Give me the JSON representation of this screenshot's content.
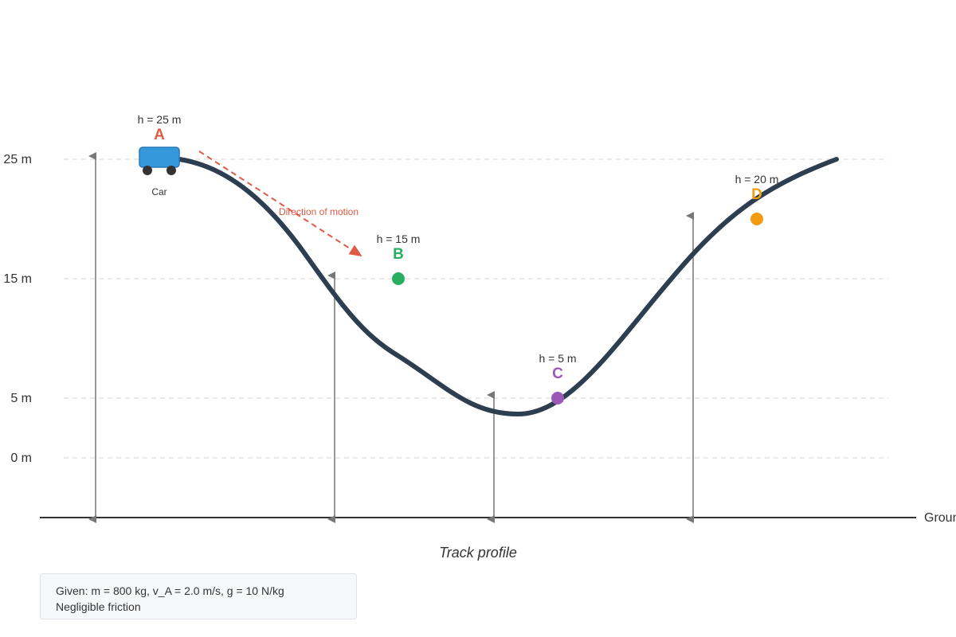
{
  "colors": {
    "track": "#2c3e50",
    "grid": "#dddddd",
    "axis": "#333333",
    "arrow": "#777777",
    "car": "#3498db",
    "car_border": "#2a7ab8",
    "wheel": "#333333",
    "motion": "#e05a45",
    "point_A": "#e05a45",
    "point_B": "#27ae60",
    "point_C": "#9b59b6",
    "point_D": "#f39c12"
  },
  "height_levels": [
    "25 m",
    "15 m",
    "5 m",
    "0 m"
  ],
  "ground_label": "Ground",
  "points": {
    "A": {
      "letter": "A",
      "height": "h = 25 m"
    },
    "B": {
      "letter": "B",
      "height": "h = 15 m"
    },
    "C": {
      "letter": "C",
      "height": "h = 5 m"
    },
    "D": {
      "letter": "D",
      "height": "h = 20 m"
    }
  },
  "car_label": "Car",
  "motion_label": "Direction of motion",
  "caption": "Track profile",
  "given": {
    "line1": "Given: m = 800 kg, v_A = 2.0 m/s, g = 10 N/kg",
    "line2": "Negligible friction"
  }
}
